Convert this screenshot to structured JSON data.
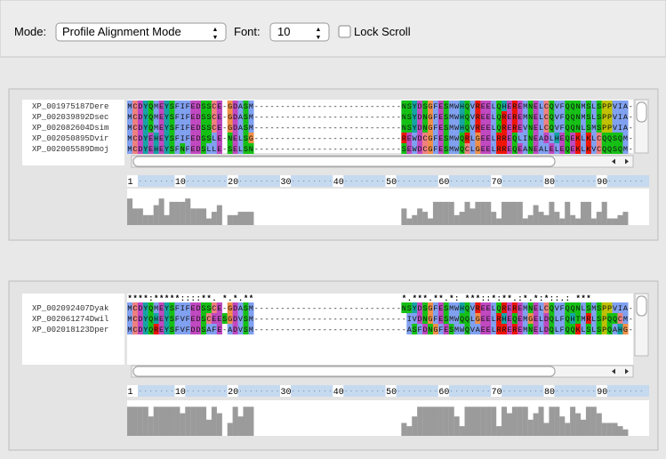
{
  "toolbar": {
    "mode_label": "Mode:",
    "mode": "Profile Alignment Mode",
    "font_label": "Font:",
    "font": 10,
    "lock_scroll": "Lock Scroll"
  },
  "residue_colors": {
    "A": "#80a0f0",
    "I": "#80a0f0",
    "L": "#80a0f0",
    "M": "#80a0f0",
    "F": "#80a0f0",
    "W": "#80a0f0",
    "V": "#80a0f0",
    "C": "#f08080",
    "K": "#f01505",
    "R": "#f01505",
    "E": "#c048c0",
    "D": "#c048c0",
    "N": "#15c015",
    "Q": "#15c015",
    "S": "#15c015",
    "T": "#15c015",
    "G": "#f09048",
    "P": "#c0c000",
    "H": "#15a4a4",
    "Y": "#15a4a4"
  },
  "conservation_ylim": [
    0,
    11
  ],
  "panels": [
    {
      "sequences": [
        {
          "name": "XP_001975187Dere",
          "residues": "MCDYQMEYSFIFEDSSCE-GDASM----------------------------NSYDSGFESMWHQVREELQHEREMNELCQVFQQNMSLSPPVIA-"
        },
        {
          "name": "XP_002039892Dsec",
          "residues": "MCDYQMEYSFIFEDSSCE-GDASM----------------------------NSYDNGFESMWHQVREELQREREMNELCQVFQQNMSLSPPVIA-"
        },
        {
          "name": "XP_002082604Dsim",
          "residues": "MCDYQMEYSFIFEDSSCE-GDASM----------------------------NSYDNGFESMWHQVREELQREREVNELCQVFQQNLSMSPPVIA-"
        },
        {
          "name": "XP_002050895Dvir",
          "residues": "MCDYEHEYSFIFEDSSLE-NELSG----------------------------REWDCGFESMWQRLGEELRREQLINEADLHEQEKLKLCQQSQM-"
        },
        {
          "name": "XP_002005589Dmoj",
          "residues": "MCDYEHEYSFNFEDSLLE-SELSN----------------------------SEWDCGFESMWQCLGEELRREQEANEALELEQEKLKVCQQSQM-"
        }
      ],
      "ruler_ticks": [
        1,
        10,
        20,
        30,
        40,
        50,
        60,
        70,
        80,
        90
      ],
      "conservation": [
        8,
        5,
        5,
        3,
        3,
        6,
        8,
        3,
        7,
        7,
        7,
        8,
        5,
        5,
        5,
        2,
        4,
        6,
        0,
        3,
        3,
        4,
        4,
        4,
        0,
        0,
        0,
        0,
        0,
        0,
        0,
        0,
        0,
        0,
        0,
        0,
        0,
        0,
        0,
        0,
        0,
        0,
        0,
        0,
        0,
        0,
        0,
        0,
        0,
        0,
        0,
        0,
        5,
        2,
        3,
        5,
        4,
        2,
        7,
        7,
        7,
        7,
        3,
        4,
        7,
        5,
        7,
        7,
        7,
        4,
        2,
        7,
        7,
        7,
        7,
        2,
        3,
        6,
        4,
        3,
        7,
        4,
        2,
        7,
        3,
        2,
        7,
        7,
        2,
        4,
        7,
        2,
        2,
        3,
        4,
        0
      ]
    },
    {
      "consensus": "****:*****::::**. *.*.**                            *.***.**.*: ***::*:**.:*.*:*::.: ***        ",
      "sequences": [
        {
          "name": "XP_002092407Dyak",
          "residues": "MCDYQMEYSFIFEDSSCE-GDASM----------------------------NSYDSGFESMWHQVREELQREREMNELCQVFQQNLSMSPPVIA-"
        },
        {
          "name": "XP_002061274Dwil",
          "residues": "MCDYQHEYSFVFEDSCEESGDVSM-----------------------------IVDNGFESMWQQLGEELRHEQEMGELDQLFQHTMRLSPQQCM-"
        },
        {
          "name": "XP_002018123Dper",
          "residues": "MCDYQREYSFVFDDSAFE-ADVSM-----------------------------ASFDNGFESMWQVAEELRREREMNELDQLFQQKLSLSPQAHG-"
        }
      ],
      "ruler_ticks": [
        1,
        10,
        20,
        30,
        40,
        50,
        60,
        70,
        80,
        90
      ],
      "conservation": [
        9,
        9,
        9,
        9,
        6,
        9,
        9,
        9,
        9,
        9,
        7,
        9,
        9,
        9,
        9,
        5,
        9,
        7,
        0,
        4,
        9,
        6,
        9,
        9,
        0,
        0,
        0,
        0,
        0,
        0,
        0,
        0,
        0,
        0,
        0,
        0,
        0,
        0,
        0,
        0,
        0,
        0,
        0,
        0,
        0,
        0,
        0,
        0,
        0,
        0,
        0,
        0,
        4,
        3,
        6,
        9,
        9,
        9,
        9,
        9,
        9,
        9,
        6,
        3,
        9,
        9,
        9,
        9,
        9,
        9,
        3,
        9,
        7,
        9,
        9,
        9,
        5,
        7,
        9,
        4,
        9,
        9,
        6,
        4,
        9,
        7,
        5,
        9,
        9,
        7,
        4,
        4,
        4,
        3,
        2,
        0
      ]
    }
  ]
}
